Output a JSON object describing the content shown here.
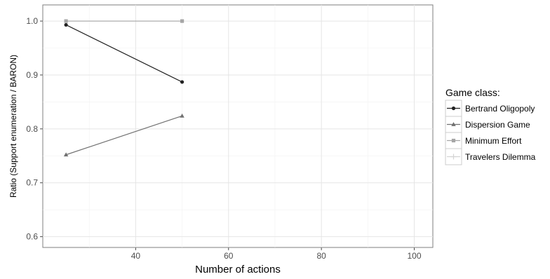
{
  "chart_data": {
    "type": "line",
    "title": "",
    "xlabel": "Number of actions",
    "ylabel": "Ratio (Support enumeration / BARON)",
    "xlim": [
      20,
      104
    ],
    "ylim": [
      0.58,
      1.03
    ],
    "xticks": [
      40,
      60,
      80,
      100
    ],
    "yticks": [
      0.6,
      0.7,
      0.8,
      0.9,
      1.0
    ],
    "xtick_labels": [
      "40",
      "60",
      "80",
      "100"
    ],
    "ytick_labels": [
      "0.6",
      "0.7",
      "0.8",
      "0.9",
      "1.0"
    ],
    "grid": true,
    "legend": {
      "title": "Game class:",
      "placement": "right"
    },
    "series": [
      {
        "name": "Bertrand Oligopoly",
        "color": "#222222",
        "marker": "circle",
        "x": [
          25,
          50
        ],
        "values": [
          0.993,
          0.887
        ]
      },
      {
        "name": "Dispersion Game",
        "color": "#707070",
        "marker": "triangle",
        "x": [
          25,
          50
        ],
        "values": [
          0.752,
          0.824
        ]
      },
      {
        "name": "Minimum Effort",
        "color": "#a6a6a6",
        "marker": "square",
        "x": [
          25,
          50
        ],
        "values": [
          1.0,
          1.0
        ]
      },
      {
        "name": "Travelers Dilemma",
        "color": "#d4d4d4",
        "marker": "plus",
        "x": [],
        "values": []
      }
    ]
  }
}
